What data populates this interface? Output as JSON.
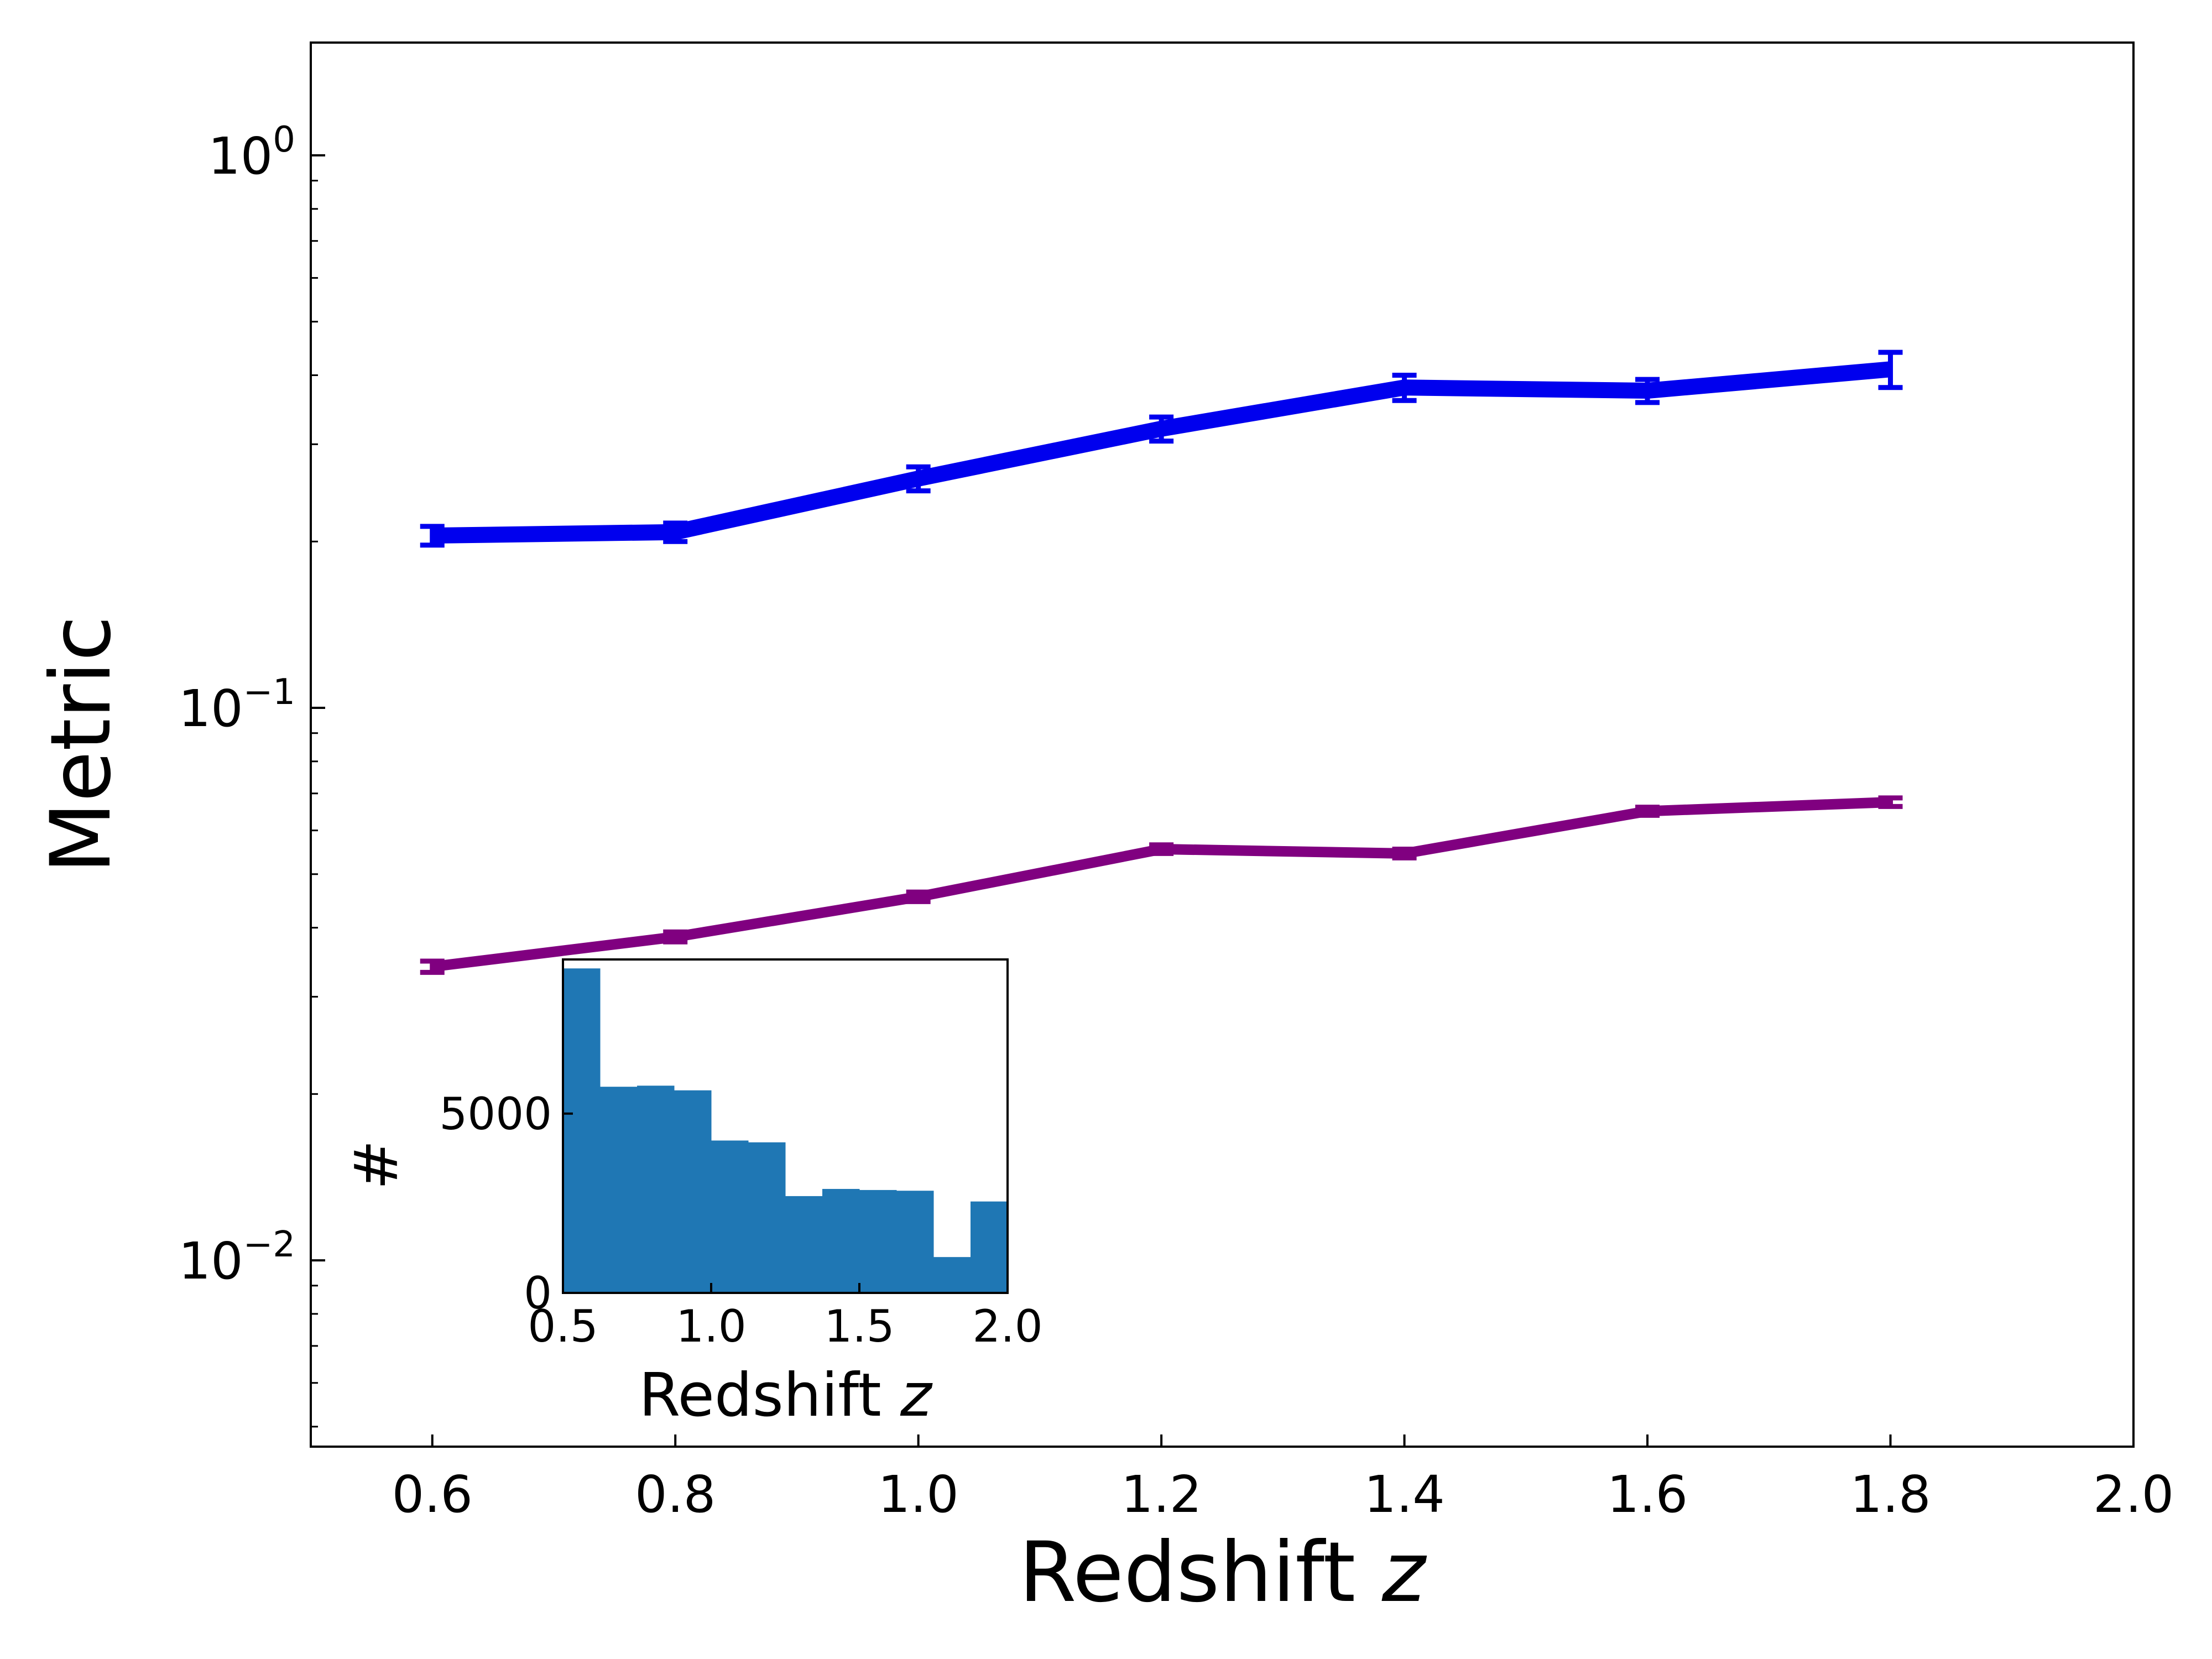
{
  "chart_data": [
    {
      "type": "line",
      "xlabel": "Redshift",
      "xlabel_var": "z",
      "ylabel": "Metric",
      "xlim": [
        0.5,
        2.0
      ],
      "ylim": [
        0.0046,
        1.6
      ],
      "yscale": "log",
      "grid": false,
      "x_ticks": [
        0.6,
        0.8,
        1.0,
        1.2,
        1.4,
        1.6,
        1.8,
        2.0
      ],
      "x_tick_labels": [
        "0.6",
        "0.8",
        "1.0",
        "1.2",
        "1.4",
        "1.6",
        "1.8",
        "2.0"
      ],
      "y_ticks": [
        {
          "value": 0.01,
          "base": "10",
          "exp": "−2"
        },
        {
          "value": 0.1,
          "base": "10",
          "exp": "−1"
        },
        {
          "value": 1,
          "base": "10",
          "exp": "0"
        }
      ],
      "series": [
        {
          "color": "#0000ee",
          "x": [
            0.6,
            0.8,
            1.0,
            1.2,
            1.4,
            1.6,
            1.8
          ],
          "y": [
            0.205,
            0.208,
            0.26,
            0.32,
            0.38,
            0.375,
            0.41
          ],
          "yerr": [
            0.008,
            0.008,
            0.013,
            0.016,
            0.02,
            0.018,
            0.03
          ]
        },
        {
          "color": "#800080",
          "x": [
            0.6,
            0.8,
            1.0,
            1.2,
            1.4,
            1.6,
            1.8
          ],
          "y": [
            0.034,
            0.0385,
            0.0455,
            0.0555,
            0.0545,
            0.065,
            0.0675
          ],
          "yerr": [
            0.0008,
            0.0008,
            0.0009,
            0.001,
            0.001,
            0.0011,
            0.0012
          ]
        }
      ]
    },
    {
      "type": "bar",
      "subtype": "histogram",
      "xlabel": "Redshift",
      "xlabel_var": "z",
      "ylabel": "#",
      "xlim": [
        0.5,
        2.0
      ],
      "ylim": [
        0,
        9300
      ],
      "color": "#1f77b4",
      "bin_edges": [
        0.5,
        0.625,
        0.75,
        0.875,
        1.0,
        1.125,
        1.25,
        1.375,
        1.5,
        1.625,
        1.75,
        1.875,
        2.0
      ],
      "counts": [
        9050,
        5750,
        5780,
        5650,
        4250,
        4200,
        2700,
        2900,
        2870,
        2850,
        1000,
        2550
      ],
      "x_ticks": [
        0.5,
        1.0,
        1.5,
        2.0
      ],
      "x_tick_labels": [
        "0.5",
        "1.0",
        "1.5",
        "2.0"
      ],
      "y_ticks": [
        0,
        5000
      ],
      "y_tick_labels": [
        "0",
        "5000"
      ]
    }
  ]
}
